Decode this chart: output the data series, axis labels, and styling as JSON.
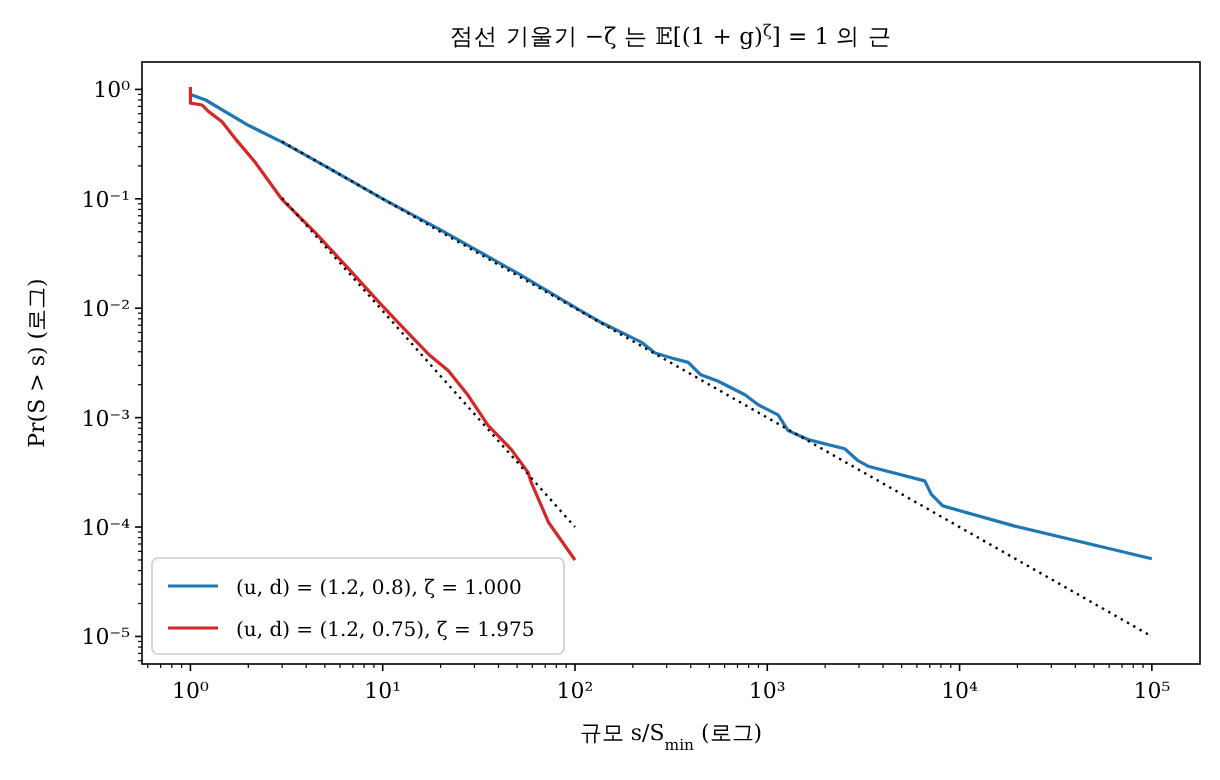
{
  "chart_data": {
    "type": "line",
    "title": "점선 기울기 −ζ 는 𝔼[(1 + g)$^{ζ}$] = 1 의 근",
    "xlabel": "규모 s/S$_{min}$ (로그)",
    "ylabel": "Pr(S > s) (로그)",
    "log": "xy",
    "xlim": [
      0.56,
      178000
    ],
    "ylim": [
      5.6e-06,
      1.78
    ],
    "xticks": [
      {
        "value": 1,
        "label": "10⁰"
      },
      {
        "value": 10,
        "label": "10¹"
      },
      {
        "value": 100,
        "label": "10²"
      },
      {
        "value": 1000,
        "label": "10³"
      },
      {
        "value": 10000,
        "label": "10⁴"
      },
      {
        "value": 100000,
        "label": "10⁵"
      }
    ],
    "yticks": [
      {
        "value": 1e-05,
        "label": "10⁻⁵"
      },
      {
        "value": 0.0001,
        "label": "10⁻⁴"
      },
      {
        "value": 0.001,
        "label": "10⁻³"
      },
      {
        "value": 0.01,
        "label": "10⁻²"
      },
      {
        "value": 0.1,
        "label": "10⁻¹"
      },
      {
        "value": 1,
        "label": "10⁰"
      }
    ],
    "legend": "bottom left",
    "series": [
      {
        "name": "(u, d) = (1.2, 0.8), ζ = 1.000",
        "color": "#1f77b4",
        "line_style": "solid",
        "x": [
          1,
          1.2,
          2,
          3,
          5,
          10,
          20,
          50,
          100,
          137,
          221,
          261,
          331,
          388,
          448,
          556,
          765,
          897,
          1138,
          1283,
          1630,
          2529,
          2965,
          3342,
          6590,
          7130,
          8180,
          19360,
          100000
        ],
        "values": [
          0.9,
          0.8,
          0.47,
          0.33,
          0.2,
          0.1,
          0.052,
          0.021,
          0.0102,
          0.0074,
          0.0049,
          0.0039,
          0.00344,
          0.0032,
          0.00248,
          0.00215,
          0.00162,
          0.00131,
          0.00106,
          0.00076,
          0.00063,
          0.00052,
          0.000404,
          0.00036,
          0.000264,
          0.000199,
          0.000156,
          0.000102,
          5.13e-05
        ]
      },
      {
        "name": "(u, d) = (1.2, 0.75), ζ = 1.975",
        "color": "#d62728",
        "line_style": "solid",
        "x": [
          1,
          1,
          1.15,
          1.24,
          1.46,
          1.71,
          2.17,
          2.99,
          4.46,
          6.64,
          9.5,
          12.6,
          17.3,
          21.9,
          27.8,
          35.3,
          46.7,
          57,
          59,
          72.9,
          100
        ],
        "values": [
          1.05,
          0.75,
          0.72,
          0.63,
          0.506,
          0.355,
          0.216,
          0.099,
          0.049,
          0.023,
          0.0115,
          0.0068,
          0.0038,
          0.0027,
          0.0016,
          0.00085,
          0.00051,
          0.000316,
          0.00026,
          0.00011,
          5e-05
        ]
      },
      {
        "color": "#000000",
        "line_style": "dotted",
        "x": [
          3,
          100000
        ],
        "values": [
          0.333,
          1e-05
        ]
      },
      {
        "color": "#000000",
        "line_style": "dotted",
        "x": [
          3,
          100
        ],
        "values": [
          0.1018,
          0.0001
        ]
      }
    ]
  }
}
